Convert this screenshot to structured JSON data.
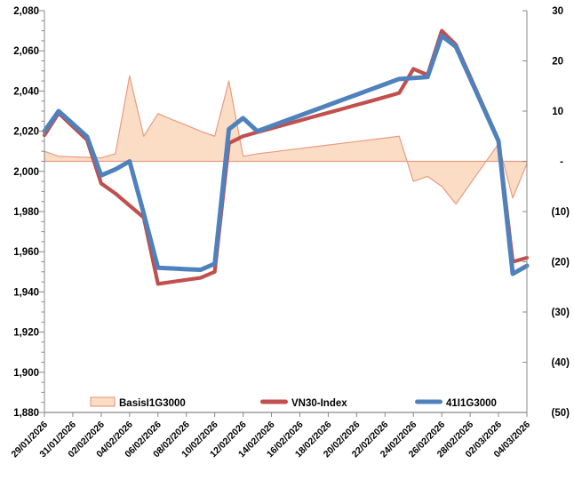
{
  "chart_data": {
    "type": "combo-area-line",
    "title": "",
    "dates": [
      "29/01/2026",
      "30/01/2026",
      "31/01/2026",
      "01/02/2026",
      "02/02/2026",
      "03/02/2026",
      "04/02/2026",
      "05/02/2026",
      "06/02/2026",
      "07/02/2026",
      "08/02/2026",
      "09/02/2026",
      "10/02/2026",
      "11/02/2026",
      "12/02/2026",
      "13/02/2026",
      "14/02/2026",
      "15/02/2026",
      "16/02/2026",
      "17/02/2026",
      "18/02/2026",
      "19/02/2026",
      "20/02/2026",
      "21/02/2026",
      "22/02/2026",
      "23/02/2026",
      "24/02/2026",
      "25/02/2026",
      "26/02/2026",
      "27/02/2026",
      "28/02/2026",
      "01/03/2026",
      "02/03/2026",
      "03/03/2026",
      "04/03/2026"
    ],
    "x_tick_labels": [
      "29/01/2026",
      "31/01/2026",
      "02/02/2026",
      "04/02/2026",
      "06/02/2026",
      "08/02/2026",
      "10/02/2026",
      "12/02/2026",
      "14/02/2026",
      "16/02/2026",
      "18/02/2026",
      "20/02/2026",
      "22/02/2026",
      "24/02/2026",
      "26/02/2026",
      "28/02/2026",
      "02/03/2026",
      "04/03/2026"
    ],
    "series": [
      {
        "name": "BasisI1G3000",
        "type": "area",
        "axis": "right",
        "fill": "#FBDCC4",
        "border": "#E89C82",
        "values": [
          2,
          1,
          0.9,
          0.8,
          0.7,
          1.5,
          17,
          5,
          9.5,
          8.3,
          7.2,
          6,
          5,
          16,
          1,
          1.5,
          1.85,
          2.2,
          2.55,
          2.9,
          3.25,
          3.6,
          3.95,
          4.3,
          4.65,
          5,
          -4,
          -3,
          -5,
          -8.5,
          -4.5,
          -0.5,
          3.5,
          -7.3,
          -0.5
        ]
      },
      {
        "name": "VN30-Index",
        "type": "line",
        "axis": "left",
        "color": "#C0504D",
        "width": 4.2,
        "values": [
          2018,
          2029,
          2022.3,
          2015.7,
          1994,
          1989,
          1983,
          1977,
          1944,
          1945,
          1946,
          1947,
          1950,
          2014,
          2017.5,
          2019.5,
          2021.4,
          2023.4,
          2025.3,
          2027.3,
          2029.2,
          2031.1,
          2033.1,
          2035,
          2037,
          2039,
          2051,
          2048,
          2070,
          2063,
          2047.2,
          2031.3,
          2015.5,
          1955,
          1957
        ]
      },
      {
        "name": "41I1G3000",
        "type": "line",
        "axis": "left",
        "color": "#4F81BD",
        "width": 5,
        "values": [
          2020,
          2030,
          2023.7,
          2017.3,
          1998,
          2001,
          2005,
          1979,
          1952,
          1951.7,
          1951.3,
          1951,
          1954,
          2021,
          2026.5,
          2020,
          2022.6,
          2025.2,
          2027.8,
          2030.4,
          2033,
          2035.6,
          2038.2,
          2040.8,
          2043.4,
          2046,
          2046.5,
          2047,
          2067.5,
          2062,
          2046.3,
          2030.7,
          2015,
          1949,
          1953
        ]
      }
    ],
    "left_axis": {
      "min": 1880,
      "max": 2080,
      "major_step": 20,
      "minor_step": 5,
      "tick_labels": [
        "2,080",
        "2,060",
        "2,040",
        "2,020",
        "2,000",
        "1,980",
        "1,960",
        "1,940",
        "1,920",
        "1,900",
        "1,880"
      ]
    },
    "right_axis": {
      "min": -50,
      "max": 30,
      "major_step": 10,
      "tick_labels": [
        "30",
        "20",
        "10",
        "-",
        "(10)",
        "(20)",
        "(30)",
        "(40)",
        "(50)"
      ]
    },
    "axis_color": "#898989",
    "legend_position": "bottom-inside",
    "legend": [
      {
        "series": "BasisI1G3000",
        "swatch": "area"
      },
      {
        "series": "VN30-Index",
        "swatch": "line"
      },
      {
        "series": "41I1G3000",
        "swatch": "line"
      }
    ]
  }
}
